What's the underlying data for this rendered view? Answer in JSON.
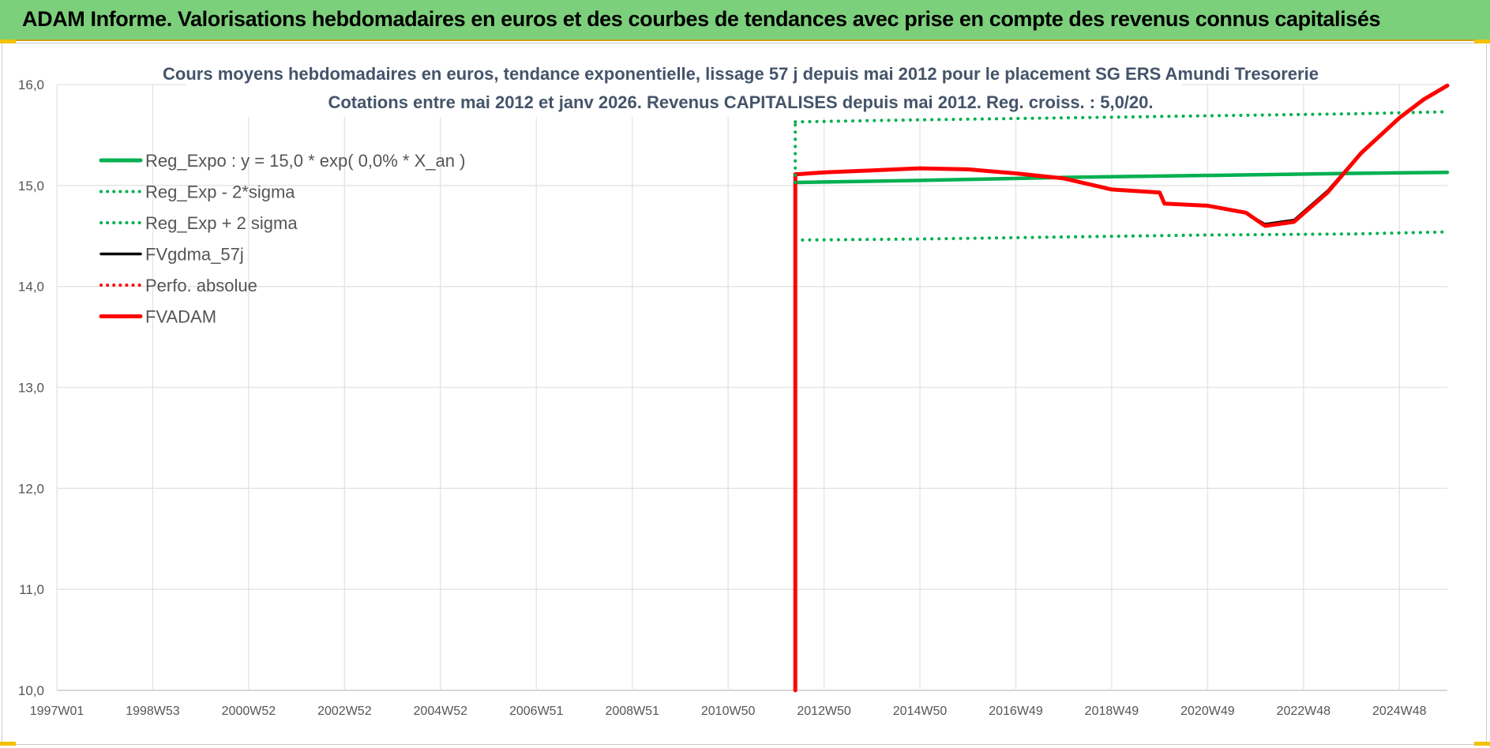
{
  "header": {
    "title": "ADAM Informe. Valorisations hebdomadaires en euros et des courbes de tendances avec prise en compte des revenus connus capitalisés"
  },
  "colors": {
    "header_bg": "#7ccf7b",
    "green": "#00b050",
    "red": "#ff0000",
    "black": "#000000",
    "accent": "#f2c100"
  },
  "chart_data": {
    "type": "line",
    "title_lines": [
      "Cours moyens hebdomadaires en euros, tendance exponentielle, lissage 57 j depuis mai 2012 pour le placement SG ERS Amundi Tresorerie",
      "Cotations entre mai 2012 et janv 2026. Revenus CAPITALISES depuis mai 2012. Reg. croiss. : 5,0/20."
    ],
    "x_tick_labels": [
      "1997W01",
      "1998W53",
      "2000W52",
      "2002W52",
      "2004W52",
      "2006W51",
      "2008W51",
      "2010W50",
      "2012W50",
      "2014W50",
      "2016W49",
      "2018W49",
      "2020W49",
      "2022W48",
      "2024W48"
    ],
    "x_axis_range": [
      1997.0,
      2026.0
    ],
    "y_axis_range": [
      10.0,
      16.0
    ],
    "y_tick_labels": [
      "10,0",
      "11,0",
      "12,0",
      "13,0",
      "14,0",
      "15,0",
      "16,0"
    ],
    "y_ticks": [
      10,
      11,
      12,
      13,
      14,
      15,
      16
    ],
    "grid": true,
    "legend_position": "top-left",
    "series": [
      {
        "name": "Reg_Expo : y = 15,0 * exp( 0,0% *  X_an )",
        "style": "solid",
        "color": "#00b050",
        "x": [
          2012.4,
          2015.0,
          2018.0,
          2021.0,
          2024.0,
          2026.0
        ],
        "y": [
          15.03,
          15.05,
          15.08,
          15.1,
          15.12,
          15.13
        ]
      },
      {
        "name": "Reg_Exp - 2*sigma",
        "style": "dotted",
        "color": "#00b050",
        "x": [
          2012.4,
          2015.0,
          2018.0,
          2021.0,
          2024.0,
          2026.0
        ],
        "y": [
          14.46,
          14.47,
          14.49,
          14.51,
          14.52,
          14.54
        ]
      },
      {
        "name": "Reg_Exp + 2 sigma",
        "style": "dotted",
        "color": "#00b050",
        "x": [
          2012.4,
          2015.0,
          2018.0,
          2021.0,
          2024.0,
          2026.0
        ],
        "y": [
          15.63,
          15.65,
          15.67,
          15.69,
          15.71,
          15.73
        ]
      },
      {
        "name": "FVgdma_57j",
        "style": "solid",
        "color": "#000000",
        "x": [
          2012.4,
          2013.0,
          2014.0,
          2015.0,
          2016.0,
          2017.0,
          2018.0,
          2019.0,
          2020.0,
          2020.1,
          2021.0,
          2021.8,
          2022.2,
          2022.8,
          2023.5,
          2024.2,
          2025.0,
          2025.5,
          2026.0
        ],
        "y": [
          15.12,
          15.13,
          15.15,
          15.17,
          15.16,
          15.12,
          15.07,
          14.97,
          14.93,
          14.83,
          14.8,
          14.73,
          14.62,
          14.66,
          14.95,
          15.33,
          15.68,
          15.86,
          15.99
        ]
      },
      {
        "name": "Perfo. absolue",
        "style": "dotted",
        "color": "#ff0000",
        "x": [],
        "y": []
      },
      {
        "name": "FVADAM",
        "style": "solid",
        "color": "#ff0000",
        "x": [
          2012.4,
          2012.4,
          2013.0,
          2014.0,
          2015.0,
          2016.0,
          2017.0,
          2018.0,
          2019.0,
          2020.0,
          2020.1,
          2021.0,
          2021.8,
          2022.2,
          2022.8,
          2023.5,
          2024.2,
          2025.0,
          2025.5,
          2026.0
        ],
        "y": [
          10.0,
          15.11,
          15.13,
          15.15,
          15.17,
          15.16,
          15.12,
          15.07,
          14.96,
          14.93,
          14.82,
          14.8,
          14.73,
          14.6,
          14.64,
          14.93,
          15.32,
          15.67,
          15.85,
          15.99
        ]
      }
    ]
  }
}
